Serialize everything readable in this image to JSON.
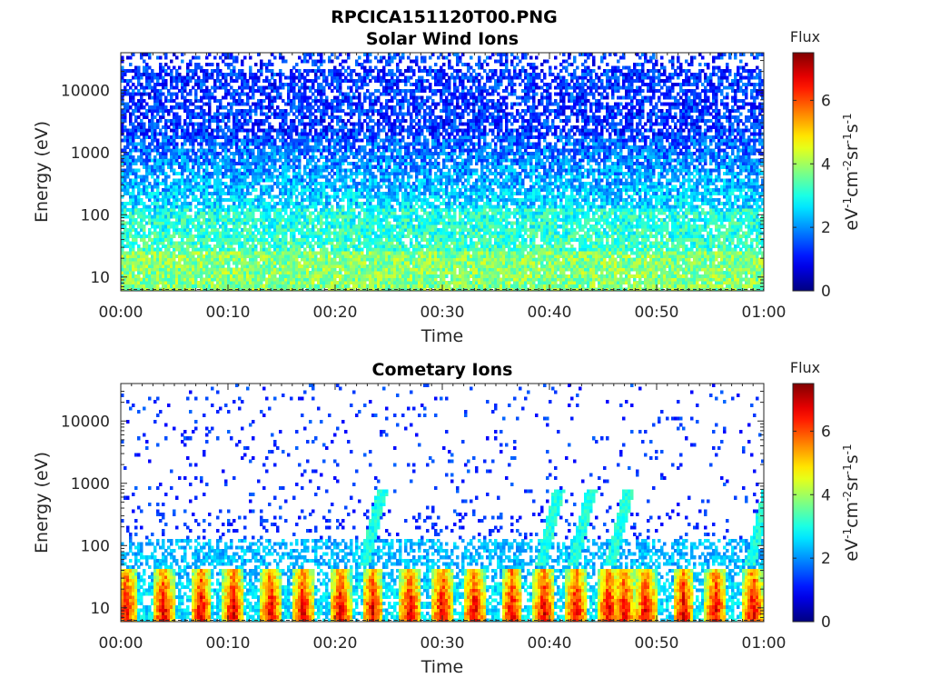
{
  "figure": {
    "title": "RPCICA151120T00.PNG"
  },
  "colors": {
    "axis": "#262626",
    "title": "#000000",
    "background": "#ffffff"
  },
  "chart_data": [
    {
      "type": "heatmap",
      "title": "Solar Wind Ions",
      "xlabel": "Time",
      "ylabel": "Energy (eV)",
      "x_range": [
        "00:00",
        "01:00"
      ],
      "x_ticks": [
        "00:00",
        "00:10",
        "00:20",
        "00:30",
        "00:40",
        "00:50",
        "01:00"
      ],
      "y_scale": "log",
      "y_range": [
        6,
        40000
      ],
      "y_ticks": [
        10,
        100,
        1000,
        10000
      ],
      "y_tick_labels": [
        "10",
        "100",
        "1000",
        "10000"
      ],
      "colorbar": {
        "title": "Flux",
        "label_parts": [
          {
            "text": "eV",
            "sup": false
          },
          {
            "text": "-1",
            "sup": true
          },
          {
            "text": "cm",
            "sup": false
          },
          {
            "text": "-2",
            "sup": true
          },
          {
            "text": "sr",
            "sup": false
          },
          {
            "text": "-1",
            "sup": true
          },
          {
            "text": "s",
            "sup": false
          },
          {
            "text": "-1",
            "sup": true
          }
        ],
        "range": [
          0,
          7.5
        ],
        "ticks": [
          0,
          2,
          4,
          6
        ],
        "tick_labels": [
          "0",
          "2",
          "4",
          "6"
        ],
        "colormap": "jet"
      },
      "profile": {
        "low_energy_flux": 3.8,
        "mid_energy_flux": 2.6,
        "high_energy_flux": 1.3,
        "background_coverage": "dense"
      },
      "grid": false
    },
    {
      "type": "heatmap",
      "title": "Cometary Ions",
      "xlabel": "Time",
      "ylabel": "Energy (eV)",
      "x_range": [
        "00:00",
        "01:00"
      ],
      "x_ticks": [
        "00:00",
        "00:10",
        "00:20",
        "00:30",
        "00:40",
        "00:50",
        "01:00"
      ],
      "y_scale": "log",
      "y_range": [
        6,
        40000
      ],
      "y_ticks": [
        10,
        100,
        1000,
        10000
      ],
      "y_tick_labels": [
        "10",
        "100",
        "1000",
        "10000"
      ],
      "colorbar": {
        "title": "Flux",
        "label_parts": [
          {
            "text": "eV",
            "sup": false
          },
          {
            "text": "-1",
            "sup": true
          },
          {
            "text": "cm",
            "sup": false
          },
          {
            "text": "-2",
            "sup": true
          },
          {
            "text": "sr",
            "sup": false
          },
          {
            "text": "-1",
            "sup": true
          },
          {
            "text": "s",
            "sup": false
          },
          {
            "text": "-1",
            "sup": true
          }
        ],
        "range": [
          0,
          7.5
        ],
        "ticks": [
          0,
          2,
          4,
          6
        ],
        "tick_labels": [
          "0",
          "2",
          "4",
          "6"
        ],
        "colormap": "jet"
      },
      "peak_times_min": [
        0.5,
        4,
        7.5,
        10.5,
        14,
        17,
        20.5,
        23.5,
        27,
        30,
        33,
        36.5,
        39.5,
        42.5,
        45.5,
        47,
        49,
        52.5,
        55.5,
        59
      ],
      "peak_flux_max": 6.8,
      "streaks_min": [
        23,
        39.5,
        42.5,
        46,
        59
      ],
      "grid": false
    }
  ]
}
